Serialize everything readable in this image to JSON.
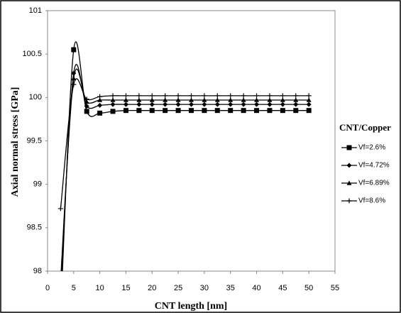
{
  "chart_data": {
    "type": "line",
    "x_label": "CNT length [nm]",
    "y_label": "Axial normal stress [GPa]",
    "legend_title": "CNT/Copper",
    "legend_position": "right",
    "x": [
      2.5,
      5,
      7.5,
      10,
      12.5,
      15,
      17.5,
      20,
      22.5,
      25,
      27.5,
      30,
      32.5,
      35,
      37.5,
      40,
      42.5,
      45,
      47.5,
      50
    ],
    "series": [
      {
        "name": "Vf=2.6%",
        "color": "#000000",
        "marker": "square",
        "values": [
          97.5,
          100.55,
          99.84,
          99.82,
          99.84,
          99.85,
          99.85,
          99.85,
          99.85,
          99.85,
          99.85,
          99.85,
          99.85,
          99.85,
          99.85,
          99.85,
          99.85,
          99.85,
          99.85,
          99.85
        ]
      },
      {
        "name": "Vf=4.72%",
        "color": "#000000",
        "marker": "diamond",
        "values": [
          97.8,
          100.28,
          99.9,
          99.91,
          99.92,
          99.92,
          99.92,
          99.92,
          99.92,
          99.92,
          99.92,
          99.92,
          99.92,
          99.92,
          99.92,
          99.92,
          99.92,
          99.92,
          99.92,
          99.92
        ]
      },
      {
        "name": "Vf=6.89%",
        "color": "#000000",
        "marker": "triangle",
        "values": [
          97.9,
          100.22,
          99.95,
          99.97,
          99.97,
          99.97,
          99.97,
          99.97,
          99.97,
          99.97,
          99.97,
          99.97,
          99.97,
          99.97,
          99.97,
          99.97,
          99.97,
          99.97,
          99.97,
          99.97
        ]
      },
      {
        "name": "Vf=8.6%",
        "color": "#000000",
        "marker": "plus",
        "values": [
          98.72,
          100.15,
          99.98,
          100.01,
          100.02,
          100.02,
          100.02,
          100.02,
          100.02,
          100.02,
          100.02,
          100.02,
          100.02,
          100.02,
          100.02,
          100.02,
          100.02,
          100.02,
          100.02,
          100.02
        ]
      }
    ],
    "xlim": [
      0,
      55
    ],
    "xticks": [
      0,
      5,
      10,
      15,
      20,
      25,
      30,
      35,
      40,
      45,
      50,
      55
    ],
    "ylim": [
      98,
      101
    ],
    "yticks": [
      98,
      98.5,
      99,
      99.5,
      100,
      100.5,
      101
    ],
    "grid": false
  }
}
